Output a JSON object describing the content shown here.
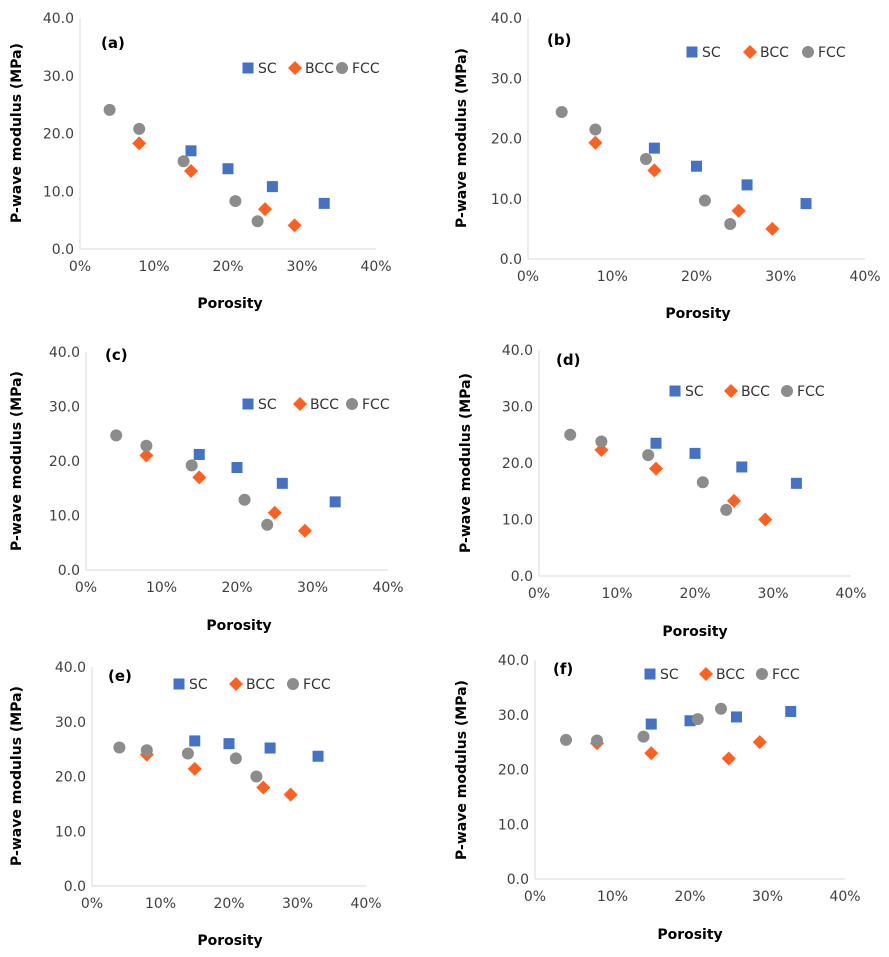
{
  "colors": {
    "SC": "#4472C4",
    "BCC": "#FF5F1F",
    "FCC": "#8C8C8C",
    "axis": "#D9D9D9"
  },
  "chart_data": [
    {
      "type": "scatter",
      "label": "(a)",
      "xlabel": "Porosity",
      "ylabel": "P-wave modulus (MPa)",
      "xlim": [
        0,
        0.4
      ],
      "ylim": [
        0,
        40
      ],
      "xticks": [
        "0%",
        "10%",
        "20%",
        "30%",
        "40%"
      ],
      "yticks": [
        "0.0",
        "10.0",
        "20.0",
        "30.0",
        "40.0"
      ],
      "series": [
        {
          "name": "SC",
          "marker": "square",
          "x": [
            0.15,
            0.2,
            0.26,
            0.33
          ],
          "y": [
            17.0,
            13.9,
            10.8,
            7.9
          ]
        },
        {
          "name": "BCC",
          "marker": "diamond",
          "x": [
            0.08,
            0.15,
            0.25,
            0.29
          ],
          "y": [
            18.3,
            13.5,
            6.9,
            4.1
          ]
        },
        {
          "name": "FCC",
          "marker": "circle",
          "x": [
            0.04,
            0.08,
            0.14,
            0.21,
            0.24
          ],
          "y": [
            24.1,
            20.8,
            15.2,
            8.3,
            4.8
          ]
        }
      ]
    },
    {
      "type": "scatter",
      "label": "(b)",
      "xlabel": "Porosity",
      "ylabel": "P-wave modulus (MPa)",
      "xlim": [
        0,
        0.4
      ],
      "ylim": [
        0,
        40
      ],
      "xticks": [
        "0%",
        "10%",
        "20%",
        "30%",
        "40%"
      ],
      "yticks": [
        "0.0",
        "10.0",
        "20.0",
        "30.0",
        "40.0"
      ],
      "series": [
        {
          "name": "SC",
          "marker": "square",
          "x": [
            0.15,
            0.2,
            0.26,
            0.33
          ],
          "y": [
            18.4,
            15.4,
            12.3,
            9.2
          ]
        },
        {
          "name": "BCC",
          "marker": "diamond",
          "x": [
            0.08,
            0.15,
            0.25,
            0.29
          ],
          "y": [
            19.3,
            14.7,
            8.0,
            5.0
          ]
        },
        {
          "name": "FCC",
          "marker": "circle",
          "x": [
            0.04,
            0.08,
            0.14,
            0.21,
            0.24
          ],
          "y": [
            24.4,
            21.5,
            16.6,
            9.7,
            5.8
          ]
        }
      ]
    },
    {
      "type": "scatter",
      "label": "(c)",
      "xlabel": "Porosity",
      "ylabel": "P-wave modulus (MPa)",
      "xlim": [
        0,
        0.4
      ],
      "ylim": [
        0,
        40
      ],
      "xticks": [
        "0%",
        "10%",
        "20%",
        "30%",
        "40%"
      ],
      "yticks": [
        "0.0",
        "10.0",
        "20.0",
        "30.0",
        "40.0"
      ],
      "series": [
        {
          "name": "SC",
          "marker": "square",
          "x": [
            0.15,
            0.2,
            0.26,
            0.33
          ],
          "y": [
            21.2,
            18.8,
            15.9,
            12.5
          ]
        },
        {
          "name": "BCC",
          "marker": "diamond",
          "x": [
            0.08,
            0.15,
            0.25,
            0.29
          ],
          "y": [
            21.0,
            17.0,
            10.5,
            7.2
          ]
        },
        {
          "name": "FCC",
          "marker": "circle",
          "x": [
            0.04,
            0.08,
            0.14,
            0.21,
            0.24
          ],
          "y": [
            24.7,
            22.8,
            19.2,
            12.9,
            8.3
          ]
        }
      ]
    },
    {
      "type": "scatter",
      "label": "(d)",
      "xlabel": "Porosity",
      "ylabel": "P-wave modulus (MPa)",
      "xlim": [
        0,
        0.4
      ],
      "ylim": [
        0,
        40
      ],
      "xticks": [
        "0%",
        "10%",
        "20%",
        "30%",
        "40%"
      ],
      "yticks": [
        "0.0",
        "10.0",
        "20.0",
        "30.0",
        "40.0"
      ],
      "series": [
        {
          "name": "SC",
          "marker": "square",
          "x": [
            0.15,
            0.2,
            0.26,
            0.33
          ],
          "y": [
            23.5,
            21.7,
            19.3,
            16.4
          ]
        },
        {
          "name": "BCC",
          "marker": "diamond",
          "x": [
            0.08,
            0.15,
            0.25,
            0.29
          ],
          "y": [
            22.3,
            19.0,
            13.3,
            10.0
          ]
        },
        {
          "name": "FCC",
          "marker": "circle",
          "x": [
            0.04,
            0.08,
            0.14,
            0.21,
            0.24
          ],
          "y": [
            25.0,
            23.8,
            21.4,
            16.6,
            11.7
          ]
        }
      ]
    },
    {
      "type": "scatter",
      "label": "(e)",
      "xlabel": "Porosity",
      "ylabel": "P-wave modulus (MPa)",
      "xlim": [
        0,
        0.4
      ],
      "ylim": [
        0,
        40
      ],
      "xticks": [
        "0%",
        "10%",
        "20%",
        "30%",
        "40%"
      ],
      "yticks": [
        "0.0",
        "10.0",
        "20.0",
        "30.0",
        "40.0"
      ],
      "series": [
        {
          "name": "SC",
          "marker": "square",
          "x": [
            0.15,
            0.2,
            0.26,
            0.33
          ],
          "y": [
            26.5,
            26.0,
            25.2,
            23.7
          ]
        },
        {
          "name": "BCC",
          "marker": "diamond",
          "x": [
            0.08,
            0.15,
            0.25,
            0.29
          ],
          "y": [
            24.0,
            21.4,
            18.0,
            16.7
          ]
        },
        {
          "name": "FCC",
          "marker": "circle",
          "x": [
            0.04,
            0.08,
            0.14,
            0.21,
            0.24
          ],
          "y": [
            25.3,
            24.8,
            24.2,
            23.3,
            20.0
          ]
        }
      ]
    },
    {
      "type": "scatter",
      "label": "(f)",
      "xlabel": "Porosity",
      "ylabel": "P-wave modulus (MPa)",
      "xlim": [
        0,
        0.4
      ],
      "ylim": [
        0,
        40
      ],
      "xticks": [
        "0%",
        "10%",
        "20%",
        "30%",
        "40%"
      ],
      "yticks": [
        "0.0",
        "10.0",
        "20.0",
        "30.0",
        "40.0"
      ],
      "series": [
        {
          "name": "SC",
          "marker": "square",
          "x": [
            0.15,
            0.2,
            0.26,
            0.33
          ],
          "y": [
            28.3,
            28.9,
            29.6,
            30.6
          ]
        },
        {
          "name": "BCC",
          "marker": "diamond",
          "x": [
            0.08,
            0.15,
            0.25,
            0.29
          ],
          "y": [
            24.8,
            23.0,
            22.0,
            25.0
          ]
        },
        {
          "name": "FCC",
          "marker": "circle",
          "x": [
            0.04,
            0.08,
            0.14,
            0.21,
            0.24
          ],
          "y": [
            25.4,
            25.3,
            26.0,
            29.2,
            31.1
          ]
        }
      ]
    }
  ]
}
